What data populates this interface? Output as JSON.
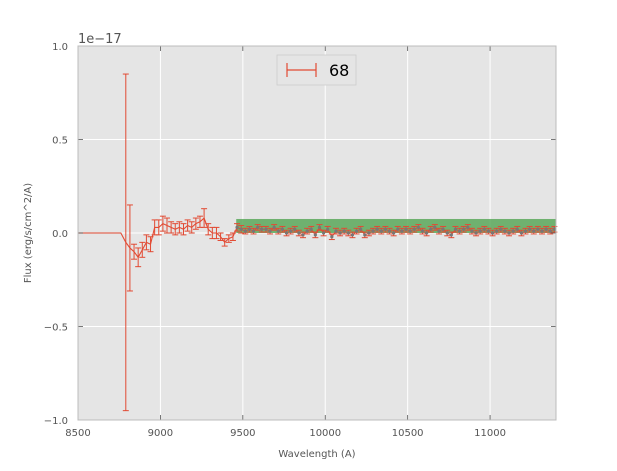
{
  "chart_data": {
    "type": "line",
    "title": "",
    "xlabel": "Wavelength (A)",
    "ylabel": "Flux (erg/s/cm^2/A)",
    "offset_text": "1e−17",
    "xlim": [
      8500,
      11400
    ],
    "ylim": [
      -1.0,
      1.0
    ],
    "x_ticks": [
      8500,
      9000,
      9500,
      10000,
      10500,
      11000
    ],
    "x_tick_labels": [
      "8500",
      "9000",
      "9500",
      "10000",
      "10500",
      "11000"
    ],
    "y_ticks": [
      -1.0,
      -0.5,
      0.0,
      0.5,
      1.0
    ],
    "y_tick_labels": [
      "−1.0",
      "−0.5",
      "0.0",
      "0.5",
      "1.0"
    ],
    "grid": true,
    "legend_position": "top-center",
    "background_color": "#e5e5e5",
    "series_color": "#e24a33",
    "marker_color": "#777777",
    "band_color": "#5aa85a",
    "band": {
      "x": [
        9460,
        11400
      ],
      "y": [
        0.0,
        0.075
      ]
    },
    "series": [
      {
        "name": "68",
        "x": [
          8500,
          8760,
          8790,
          8815,
          8840,
          8865,
          8890,
          8915,
          8940,
          8965,
          8990,
          9015,
          9040,
          9065,
          9090,
          9115,
          9140,
          9165,
          9190,
          9215,
          9240,
          9265,
          9290,
          9315,
          9340,
          9365,
          9390,
          9415,
          9440,
          9465,
          9490,
          9515,
          9540,
          9565,
          9590,
          9615,
          9640,
          9665,
          9690,
          9715,
          9740,
          9765,
          9790,
          9815,
          9840,
          9865,
          9890,
          9915,
          9940,
          9965,
          9990,
          10015,
          10040,
          10065,
          10090,
          10115,
          10140,
          10165,
          10190,
          10215,
          10240,
          10265,
          10290,
          10315,
          10340,
          10365,
          10390,
          10415,
          10440,
          10465,
          10490,
          10515,
          10540,
          10565,
          10590,
          10615,
          10640,
          10665,
          10690,
          10715,
          10740,
          10765,
          10790,
          10815,
          10840,
          10865,
          10890,
          10915,
          10940,
          10965,
          10990,
          11015,
          11040,
          11065,
          11090,
          11115,
          11140,
          11165,
          11190,
          11215,
          11240,
          11265,
          11290,
          11315,
          11340,
          11365,
          11390
        ],
        "y": [
          0.0,
          0.0,
          -0.05,
          -0.08,
          -0.1,
          -0.13,
          -0.09,
          -0.05,
          -0.06,
          0.03,
          0.03,
          0.05,
          0.04,
          0.03,
          0.02,
          0.03,
          0.02,
          0.04,
          0.03,
          0.05,
          0.06,
          0.08,
          0.02,
          0.0,
          0.0,
          -0.02,
          -0.05,
          -0.03,
          -0.02,
          0.03,
          0.02,
          0.01,
          0.02,
          0.01,
          0.03,
          0.02,
          0.02,
          0.01,
          0.03,
          0.01,
          0.02,
          0.0,
          0.01,
          0.02,
          0.0,
          -0.01,
          0.01,
          0.02,
          -0.01,
          0.03,
          0.0,
          0.02,
          -0.02,
          0.01,
          0.0,
          0.01,
          0.0,
          -0.01,
          0.01,
          0.02,
          -0.01,
          0.0,
          0.01,
          0.02,
          0.01,
          0.02,
          0.01,
          0.0,
          0.02,
          0.01,
          0.02,
          0.01,
          0.02,
          0.03,
          0.01,
          0.0,
          0.02,
          0.03,
          0.01,
          0.02,
          0.0,
          -0.01,
          0.02,
          0.01,
          0.02,
          0.03,
          0.01,
          0.0,
          0.01,
          0.02,
          0.01,
          0.0,
          0.01,
          0.02,
          0.01,
          0.0,
          0.01,
          0.02,
          0.0,
          0.01,
          0.02,
          0.01,
          0.02,
          0.01,
          0.02,
          0.01,
          0.02
        ],
        "err": [
          0.0,
          0.0,
          0.9,
          0.23,
          0.04,
          0.05,
          0.04,
          0.04,
          0.04,
          0.04,
          0.04,
          0.04,
          0.04,
          0.03,
          0.03,
          0.03,
          0.03,
          0.03,
          0.03,
          0.03,
          0.03,
          0.05,
          0.03,
          0.03,
          0.03,
          0.02,
          0.02,
          0.02,
          0.02,
          0.02,
          0.02,
          0.015,
          0.015,
          0.015,
          0.015,
          0.015,
          0.015,
          0.015,
          0.015,
          0.015,
          0.015,
          0.015,
          0.015,
          0.015,
          0.015,
          0.015,
          0.015,
          0.015,
          0.015,
          0.015,
          0.015,
          0.015,
          0.015,
          0.015,
          0.015,
          0.015,
          0.015,
          0.015,
          0.015,
          0.015,
          0.015,
          0.015,
          0.015,
          0.015,
          0.015,
          0.015,
          0.015,
          0.015,
          0.015,
          0.015,
          0.015,
          0.015,
          0.015,
          0.015,
          0.015,
          0.015,
          0.015,
          0.015,
          0.015,
          0.015,
          0.015,
          0.015,
          0.015,
          0.015,
          0.015,
          0.015,
          0.015,
          0.015,
          0.015,
          0.015,
          0.015,
          0.015,
          0.015,
          0.015,
          0.015,
          0.015,
          0.015,
          0.015,
          0.015,
          0.015,
          0.015,
          0.015,
          0.015,
          0.015,
          0.015,
          0.015,
          0.015
        ],
        "markers_from_x": 9465
      }
    ]
  }
}
